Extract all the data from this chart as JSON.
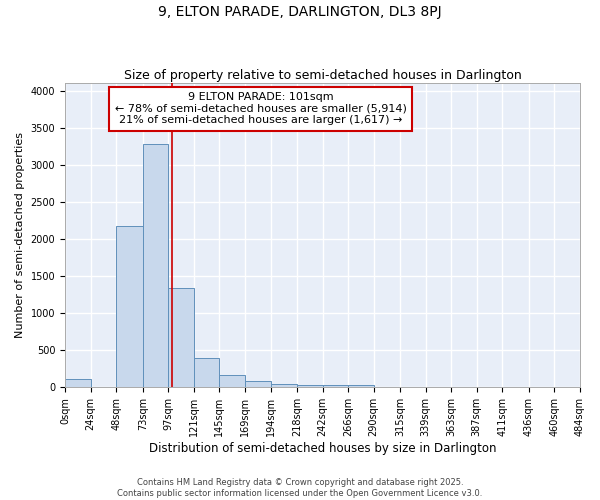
{
  "title": "9, ELTON PARADE, DARLINGTON, DL3 8PJ",
  "subtitle": "Size of property relative to semi-detached houses in Darlington",
  "xlabel": "Distribution of semi-detached houses by size in Darlington",
  "ylabel": "Number of semi-detached properties",
  "bin_edges": [
    0,
    24,
    48,
    73,
    97,
    121,
    145,
    169,
    194,
    218,
    242,
    266,
    290,
    315,
    339,
    363,
    387,
    411,
    436,
    460,
    484
  ],
  "bin_counts": [
    110,
    0,
    2170,
    3280,
    1340,
    390,
    165,
    85,
    45,
    35,
    30,
    30,
    0,
    0,
    0,
    0,
    0,
    0,
    0,
    0
  ],
  "bar_color": "#c8d8ec",
  "bar_edge_color": "#6090bb",
  "ylim": [
    0,
    4100
  ],
  "yticks": [
    0,
    500,
    1000,
    1500,
    2000,
    2500,
    3000,
    3500,
    4000
  ],
  "red_line_x": 101,
  "annotation_line1": "9 ELTON PARADE: 101sqm",
  "annotation_line2": "← 78% of semi-detached houses are smaller (5,914)",
  "annotation_line3": "21% of semi-detached houses are larger (1,617) →",
  "annotation_box_color": "#ffffff",
  "annotation_box_edge": "#cc0000",
  "footer_line1": "Contains HM Land Registry data © Crown copyright and database right 2025.",
  "footer_line2": "Contains public sector information licensed under the Open Government Licence v3.0.",
  "background_color": "#e8eef8",
  "grid_color": "#ffffff",
  "title_fontsize": 10,
  "subtitle_fontsize": 9,
  "tick_label_fontsize": 7,
  "ylabel_fontsize": 8,
  "xlabel_fontsize": 8.5,
  "annotation_fontsize": 8,
  "footer_fontsize": 6
}
